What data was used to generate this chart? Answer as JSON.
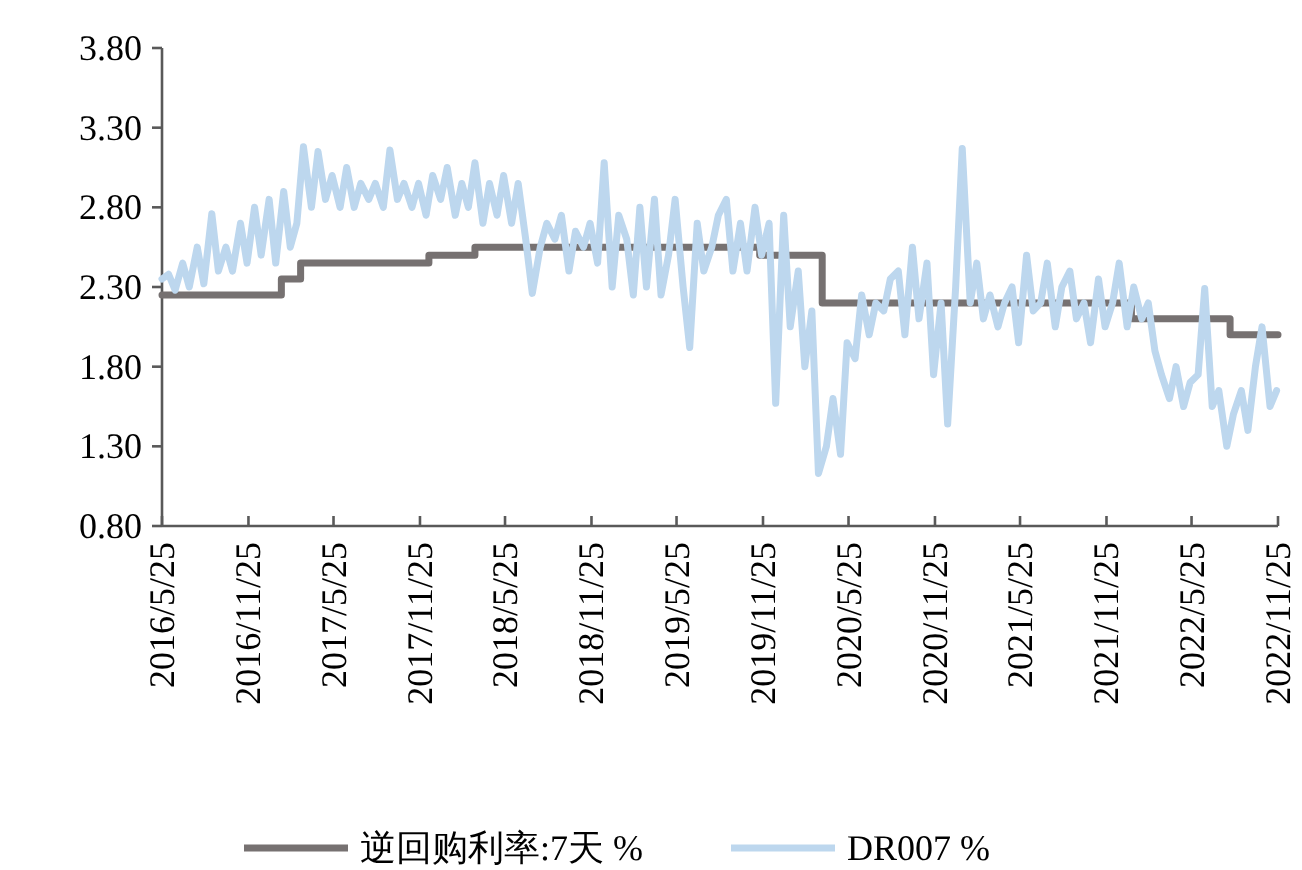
{
  "chart_data": {
    "type": "line",
    "xlim": [
      "2016-05-25",
      "2022-11-25"
    ],
    "xticks": [
      {
        "value": "2016-05-25",
        "label": "2016/5/25"
      },
      {
        "value": "2016-11-25",
        "label": "2016/11/25"
      },
      {
        "value": "2017-05-25",
        "label": "2017/5/25"
      },
      {
        "value": "2017-11-25",
        "label": "2017/11/25"
      },
      {
        "value": "2018-05-25",
        "label": "2018/5/25"
      },
      {
        "value": "2018-11-25",
        "label": "2018/11/25"
      },
      {
        "value": "2019-05-25",
        "label": "2019/5/25"
      },
      {
        "value": "2019-11-25",
        "label": "2019/11/25"
      },
      {
        "value": "2020-05-25",
        "label": "2020/5/25"
      },
      {
        "value": "2020-11-25",
        "label": "2020/11/25"
      },
      {
        "value": "2021-05-25",
        "label": "2021/5/25"
      },
      {
        "value": "2021-11-25",
        "label": "2021/11/25"
      },
      {
        "value": "2022-05-25",
        "label": "2022/5/25"
      },
      {
        "value": "2022-11-25",
        "label": "2022/11/25"
      }
    ],
    "ylim": [
      0.8,
      3.8
    ],
    "yticks": [
      {
        "value": 0.8,
        "label": "0.80"
      },
      {
        "value": 1.3,
        "label": "1.30"
      },
      {
        "value": 1.8,
        "label": "1.80"
      },
      {
        "value": 2.3,
        "label": "2.30"
      },
      {
        "value": 2.8,
        "label": "2.80"
      },
      {
        "value": 3.3,
        "label": "3.30"
      },
      {
        "value": 3.8,
        "label": "3.80"
      }
    ],
    "legend": "bottom",
    "grid": false,
    "series": [
      {
        "name": "逆回购利率:7天 %",
        "type": "step",
        "color": "#767171",
        "x": [
          "2016-05-25",
          "2017-02-03",
          "2017-03-16",
          "2017-12-14",
          "2018-03-22",
          "2019-11-18",
          "2020-03-30",
          "2022-01-17",
          "2022-08-15",
          "2022-11-25"
        ],
        "values": [
          2.25,
          2.35,
          2.45,
          2.5,
          2.55,
          2.5,
          2.2,
          2.1,
          2.0,
          2.0
        ]
      },
      {
        "name": "DR007 %",
        "color": "#bdd7ee",
        "x": [
          "2016-05-25",
          "2016-06-08",
          "2016-06-22",
          "2016-07-08",
          "2016-07-22",
          "2016-08-08",
          "2016-08-22",
          "2016-09-08",
          "2016-09-22",
          "2016-10-08",
          "2016-10-22",
          "2016-11-08",
          "2016-11-22",
          "2016-12-08",
          "2016-12-22",
          "2017-01-08",
          "2017-01-22",
          "2017-02-08",
          "2017-02-22",
          "2017-03-08",
          "2017-03-22",
          "2017-04-08",
          "2017-04-22",
          "2017-05-08",
          "2017-05-22",
          "2017-06-08",
          "2017-06-22",
          "2017-07-08",
          "2017-07-22",
          "2017-08-08",
          "2017-08-22",
          "2017-09-08",
          "2017-09-22",
          "2017-10-08",
          "2017-10-22",
          "2017-11-08",
          "2017-11-22",
          "2017-12-08",
          "2017-12-22",
          "2018-01-08",
          "2018-01-22",
          "2018-02-08",
          "2018-02-22",
          "2018-03-08",
          "2018-03-22",
          "2018-04-08",
          "2018-04-22",
          "2018-05-08",
          "2018-05-22",
          "2018-06-08",
          "2018-06-22",
          "2018-07-08",
          "2018-07-22",
          "2018-08-08",
          "2018-08-22",
          "2018-09-08",
          "2018-09-22",
          "2018-10-08",
          "2018-10-22",
          "2018-11-08",
          "2018-11-22",
          "2018-12-08",
          "2018-12-22",
          "2019-01-08",
          "2019-01-22",
          "2019-02-08",
          "2019-02-22",
          "2019-03-08",
          "2019-03-22",
          "2019-04-08",
          "2019-04-22",
          "2019-05-08",
          "2019-05-22",
          "2019-06-08",
          "2019-06-22",
          "2019-07-08",
          "2019-07-22",
          "2019-08-08",
          "2019-08-22",
          "2019-09-08",
          "2019-09-22",
          "2019-10-08",
          "2019-10-22",
          "2019-11-08",
          "2019-11-22",
          "2019-12-08",
          "2019-12-22",
          "2020-01-08",
          "2020-01-22",
          "2020-02-08",
          "2020-02-22",
          "2020-03-08",
          "2020-03-22",
          "2020-04-08",
          "2020-04-22",
          "2020-05-08",
          "2020-05-22",
          "2020-06-08",
          "2020-06-22",
          "2020-07-08",
          "2020-07-22",
          "2020-08-08",
          "2020-08-22",
          "2020-09-08",
          "2020-09-22",
          "2020-10-08",
          "2020-10-22",
          "2020-11-08",
          "2020-11-22",
          "2020-12-08",
          "2020-12-22",
          "2021-01-08",
          "2021-01-22",
          "2021-02-08",
          "2021-02-22",
          "2021-03-08",
          "2021-03-22",
          "2021-04-08",
          "2021-04-22",
          "2021-05-08",
          "2021-05-22",
          "2021-06-08",
          "2021-06-22",
          "2021-07-08",
          "2021-07-22",
          "2021-08-08",
          "2021-08-22",
          "2021-09-08",
          "2021-09-22",
          "2021-10-08",
          "2021-10-22",
          "2021-11-08",
          "2021-11-22",
          "2021-12-08",
          "2021-12-22",
          "2022-01-08",
          "2022-01-22",
          "2022-02-08",
          "2022-02-22",
          "2022-03-08",
          "2022-03-22",
          "2022-04-08",
          "2022-04-22",
          "2022-05-08",
          "2022-05-22",
          "2022-06-08",
          "2022-06-22",
          "2022-07-08",
          "2022-07-22",
          "2022-08-08",
          "2022-08-22",
          "2022-09-08",
          "2022-09-22",
          "2022-10-08",
          "2022-10-22",
          "2022-11-08",
          "2022-11-22"
        ],
        "values": [
          2.35,
          2.38,
          2.28,
          2.45,
          2.3,
          2.55,
          2.32,
          2.76,
          2.4,
          2.55,
          2.4,
          2.7,
          2.45,
          2.8,
          2.5,
          2.85,
          2.45,
          2.9,
          2.55,
          2.7,
          3.18,
          2.8,
          3.15,
          2.85,
          3.0,
          2.8,
          3.05,
          2.8,
          2.95,
          2.85,
          2.95,
          2.8,
          3.16,
          2.85,
          2.95,
          2.8,
          2.95,
          2.75,
          3.0,
          2.85,
          3.05,
          2.75,
          2.95,
          2.8,
          3.08,
          2.7,
          2.95,
          2.75,
          3.0,
          2.7,
          2.95,
          2.6,
          2.26,
          2.55,
          2.7,
          2.6,
          2.75,
          2.4,
          2.65,
          2.55,
          2.7,
          2.45,
          3.08,
          2.3,
          2.75,
          2.6,
          2.25,
          2.8,
          2.3,
          2.85,
          2.25,
          2.5,
          2.85,
          2.3,
          1.92,
          2.7,
          2.4,
          2.55,
          2.75,
          2.85,
          2.4,
          2.7,
          2.4,
          2.8,
          2.5,
          2.7,
          1.57,
          2.75,
          2.05,
          2.4,
          1.8,
          2.15,
          1.13,
          1.3,
          1.6,
          1.25,
          1.95,
          1.85,
          2.25,
          2.0,
          2.2,
          2.15,
          2.35,
          2.4,
          2.0,
          2.55,
          2.1,
          2.45,
          1.75,
          2.2,
          1.44,
          2.3,
          3.17,
          2.2,
          2.45,
          2.1,
          2.25,
          2.05,
          2.2,
          2.3,
          1.95,
          2.5,
          2.15,
          2.2,
          2.45,
          2.05,
          2.3,
          2.4,
          2.1,
          2.2,
          1.95,
          2.35,
          2.05,
          2.2,
          2.45,
          2.05,
          2.3,
          2.1,
          2.2,
          1.9,
          1.75,
          1.6,
          1.8,
          1.55,
          1.7,
          1.75,
          2.29,
          1.55,
          1.65,
          1.3,
          1.5,
          1.65,
          1.4,
          1.8,
          2.05,
          1.55,
          1.65
        ]
      }
    ]
  }
}
